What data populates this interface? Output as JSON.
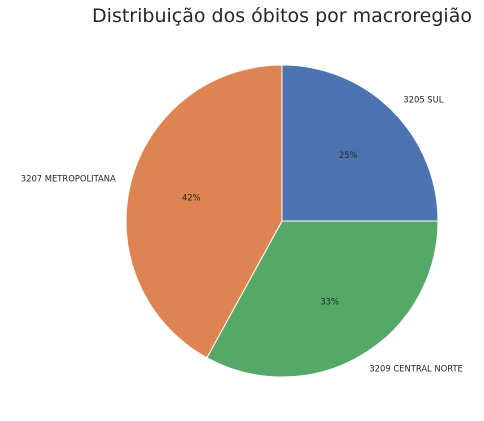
{
  "chart_data": {
    "type": "pie",
    "title": "Distribuição dos óbitos por macroregião",
    "categories": [
      "3205 SUL",
      "3209 CENTRAL NORTE",
      "3207 METROPOLITANA"
    ],
    "values": [
      25,
      33,
      42
    ],
    "percent_labels": [
      "25%",
      "33%",
      "42%"
    ],
    "colors": [
      "#4c72b0",
      "#55a868",
      "#dd8452"
    ],
    "start_angle_deg": 90,
    "direction": "clockwise",
    "slice_edge_color": "#ffffff",
    "legend": "none"
  }
}
